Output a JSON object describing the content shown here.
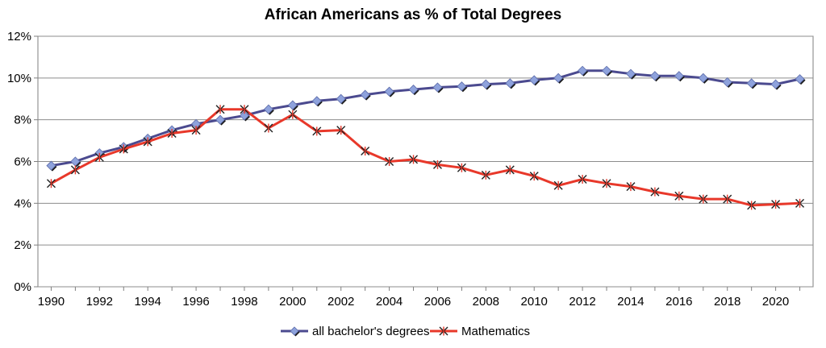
{
  "chart_data": {
    "type": "line",
    "title": "African Americans as % of Total Degrees",
    "xlabel": "",
    "ylabel": "",
    "xlim": [
      1990,
      2021
    ],
    "ylim": [
      0,
      12
    ],
    "y_ticks": [
      "0%",
      "2%",
      "4%",
      "6%",
      "8%",
      "10%",
      "12%"
    ],
    "y_tick_values": [
      0,
      2,
      4,
      6,
      8,
      10,
      12
    ],
    "x_ticks": [
      "1990",
      "1992",
      "1994",
      "1996",
      "1998",
      "2000",
      "2002",
      "2004",
      "2006",
      "2008",
      "2010",
      "2012",
      "2014",
      "2016",
      "2018",
      "2020"
    ],
    "x_tick_values": [
      1990,
      1992,
      1994,
      1996,
      1998,
      2000,
      2002,
      2004,
      2006,
      2008,
      2010,
      2012,
      2014,
      2016,
      2018,
      2020
    ],
    "grid": "horizontal",
    "legend_position": "bottom",
    "x": [
      1990,
      1991,
      1992,
      1993,
      1994,
      1995,
      1996,
      1997,
      1998,
      1999,
      2000,
      2001,
      2002,
      2003,
      2004,
      2005,
      2006,
      2007,
      2008,
      2009,
      2010,
      2011,
      2012,
      2013,
      2014,
      2015,
      2016,
      2017,
      2018,
      2019,
      2020,
      2021
    ],
    "series": [
      {
        "name": "all bachelor's degrees",
        "color": "#4b4a8f",
        "marker": "diamond",
        "marker_color": "#8ea2dc",
        "values": [
          5.8,
          6.0,
          6.4,
          6.7,
          7.1,
          7.5,
          7.8,
          8.0,
          8.2,
          8.5,
          8.7,
          8.9,
          9.0,
          9.2,
          9.35,
          9.45,
          9.55,
          9.6,
          9.7,
          9.75,
          9.9,
          10.0,
          10.35,
          10.35,
          10.2,
          10.1,
          10.1,
          10.0,
          9.8,
          9.75,
          9.7,
          9.95
        ]
      },
      {
        "name": "Mathematics",
        "color": "#e8382a",
        "marker": "asterisk",
        "values": [
          4.95,
          5.6,
          6.2,
          6.6,
          6.95,
          7.35,
          7.5,
          8.5,
          8.5,
          7.6,
          8.25,
          7.45,
          7.5,
          6.5,
          6.0,
          6.1,
          5.85,
          5.7,
          5.35,
          5.6,
          5.3,
          4.85,
          5.15,
          4.95,
          4.8,
          4.55,
          4.35,
          4.2,
          4.2,
          3.9,
          3.95,
          4.0
        ]
      }
    ]
  }
}
